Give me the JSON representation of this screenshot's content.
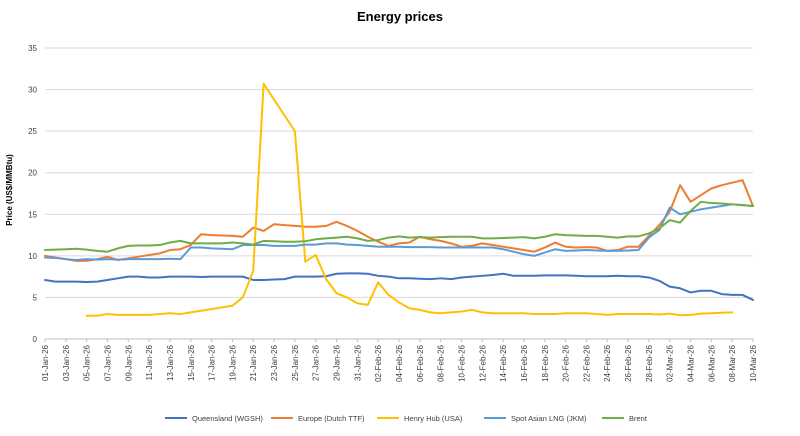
{
  "chart_data": {
    "type": "line",
    "title": "Energy prices",
    "xlabel": "",
    "ylabel": "Price  (US$/MMBtu)",
    "ylim": [
      0,
      35
    ],
    "yticks": [
      0,
      5,
      10,
      15,
      20,
      25,
      30,
      35
    ],
    "grid": "horizontal",
    "legend_position": "bottom",
    "x": [
      "01-Jan-26",
      "02-Jan-26",
      "03-Jan-26",
      "04-Jan-26",
      "05-Jan-26",
      "06-Jan-26",
      "07-Jan-26",
      "08-Jan-26",
      "09-Jan-26",
      "10-Jan-26",
      "11-Jan-26",
      "12-Jan-26",
      "13-Jan-26",
      "14-Jan-26",
      "15-Jan-26",
      "16-Jan-26",
      "17-Jan-26",
      "18-Jan-26",
      "19-Jan-26",
      "20-Jan-26",
      "21-Jan-26",
      "22-Jan-26",
      "23-Jan-26",
      "24-Jan-26",
      "25-Jan-26",
      "26-Jan-26",
      "27-Jan-26",
      "28-Jan-26",
      "29-Jan-26",
      "30-Jan-26",
      "31-Jan-26",
      "01-Feb-26",
      "02-Feb-26",
      "03-Feb-26",
      "04-Feb-26",
      "05-Feb-26",
      "06-Feb-26",
      "07-Feb-26",
      "08-Feb-26",
      "09-Feb-26",
      "10-Feb-26",
      "11-Feb-26",
      "12-Feb-26",
      "13-Feb-26",
      "14-Feb-26",
      "15-Feb-26",
      "16-Feb-26",
      "17-Feb-26",
      "18-Feb-26",
      "19-Feb-26",
      "20-Feb-26",
      "21-Feb-26",
      "22-Feb-26",
      "23-Feb-26",
      "24-Feb-26",
      "25-Feb-26",
      "26-Feb-26",
      "27-Feb-26",
      "28-Feb-26",
      "01-Mar-26",
      "02-Mar-26",
      "03-Mar-26",
      "04-Mar-26",
      "05-Mar-26",
      "06-Mar-26",
      "07-Mar-26",
      "08-Mar-26",
      "09-Mar-26",
      "10-Mar-26"
    ],
    "x_tick_labels": [
      "01-Jan-26",
      "03-Jan-26",
      "05-Jan-26",
      "07-Jan-26",
      "09-Jan-26",
      "11-Jan-26",
      "13-Jan-26",
      "15-Jan-26",
      "17-Jan-26",
      "19-Jan-26",
      "21-Jan-26",
      "23-Jan-26",
      "25-Jan-26",
      "27-Jan-26",
      "29-Jan-26",
      "31-Jan-26",
      "02-Feb-26",
      "04-Feb-26",
      "06-Feb-26",
      "08-Feb-26",
      "10-Feb-26",
      "12-Feb-26",
      "14-Feb-26",
      "16-Feb-26",
      "18-Feb-26",
      "20-Feb-26",
      "22-Feb-26",
      "24-Feb-26",
      "26-Feb-26",
      "28-Feb-26",
      "02-Mar-26",
      "04-Mar-26",
      "06-Mar-26",
      "08-Mar-26",
      "10-Mar-26"
    ],
    "series": [
      {
        "name": "Queensland (WGSH)",
        "color": "#4472C4",
        "values": [
          7.1,
          6.9,
          6.9,
          6.9,
          6.85,
          6.9,
          7.1,
          7.3,
          7.5,
          7.5,
          7.4,
          7.4,
          7.5,
          7.5,
          7.5,
          7.45,
          7.5,
          7.5,
          7.5,
          7.5,
          7.1,
          7.1,
          7.15,
          7.2,
          7.5,
          7.5,
          7.5,
          7.55,
          7.85,
          7.9,
          7.9,
          7.85,
          7.6,
          7.5,
          7.3,
          7.3,
          7.25,
          7.2,
          7.3,
          7.2,
          7.4,
          7.5,
          7.6,
          7.7,
          7.85,
          7.6,
          7.6,
          7.6,
          7.65,
          7.65,
          7.65,
          7.6,
          7.55,
          7.55,
          7.55,
          7.6,
          7.55,
          7.55,
          7.4,
          7.0,
          6.3,
          6.1,
          5.6,
          5.8,
          5.8,
          5.4,
          5.3,
          5.3,
          4.7
        ]
      },
      {
        "name": "Europe (Dutch TTF)",
        "color": "#ED7D31",
        "values": [
          10.0,
          9.8,
          9.6,
          9.4,
          9.4,
          9.6,
          9.9,
          9.5,
          9.7,
          9.9,
          10.1,
          10.3,
          10.7,
          10.8,
          11.3,
          12.6,
          12.5,
          12.45,
          12.4,
          12.3,
          13.4,
          13.0,
          13.8,
          13.7,
          13.6,
          13.5,
          13.5,
          13.6,
          14.1,
          13.6,
          13.0,
          12.3,
          11.7,
          11.2,
          11.5,
          11.6,
          12.3,
          12.0,
          11.8,
          11.5,
          11.1,
          11.2,
          11.5,
          11.3,
          11.1,
          10.9,
          10.7,
          10.5,
          11.0,
          11.6,
          11.1,
          11.0,
          11.05,
          11.0,
          10.6,
          10.7,
          11.1,
          11.1,
          12.4,
          13.7,
          15.3,
          18.5,
          16.5,
          17.3,
          18.1,
          18.5,
          18.8,
          19.1,
          16.0
        ]
      },
      {
        "name": "Henry Hub (USA)",
        "color": "#FFC000",
        "values": [
          null,
          null,
          null,
          null,
          2.8,
          2.8,
          3.0,
          2.9,
          2.9,
          2.9,
          2.9,
          3.0,
          3.1,
          3.0,
          3.2,
          3.4,
          3.6,
          3.8,
          4.0,
          5.0,
          8.2,
          30.7,
          28.8,
          26.9,
          25.0,
          9.3,
          10.1,
          7.2,
          5.5,
          5.0,
          4.3,
          4.1,
          6.8,
          5.3,
          4.4,
          3.7,
          3.5,
          3.2,
          3.1,
          3.2,
          3.3,
          3.5,
          3.2,
          3.1,
          3.1,
          3.1,
          3.1,
          3.0,
          3.0,
          3.0,
          3.1,
          3.1,
          3.1,
          3.0,
          2.9,
          3.0,
          3.0,
          3.0,
          3.0,
          2.95,
          3.05,
          2.85,
          2.9,
          3.05,
          3.1,
          3.15,
          3.2,
          null,
          null
        ]
      },
      {
        "name": "Spot Asian LNG (JKM)",
        "color": "#5B9BD5",
        "values": [
          9.8,
          9.75,
          9.6,
          9.5,
          9.6,
          9.55,
          9.6,
          9.55,
          9.6,
          9.6,
          9.6,
          9.6,
          9.65,
          9.6,
          11.0,
          11.0,
          10.9,
          10.85,
          10.8,
          11.3,
          11.3,
          11.3,
          11.2,
          11.2,
          11.2,
          11.35,
          11.35,
          11.5,
          11.5,
          11.35,
          11.3,
          11.2,
          11.1,
          11.1,
          11.1,
          11.05,
          11.05,
          11.05,
          11.0,
          11.0,
          11.0,
          11.0,
          11.0,
          11.0,
          10.8,
          10.5,
          10.2,
          10.0,
          10.4,
          10.8,
          10.6,
          10.65,
          10.7,
          10.65,
          10.6,
          10.6,
          10.65,
          10.7,
          12.2,
          13.1,
          15.8,
          15.0,
          15.3,
          15.6,
          15.8,
          16.0,
          16.2,
          16.1,
          16.0
        ]
      },
      {
        "name": "Brent",
        "color": "#70AD47",
        "values": [
          10.7,
          10.75,
          10.8,
          10.85,
          10.75,
          10.6,
          10.5,
          10.9,
          11.2,
          11.25,
          11.25,
          11.3,
          11.6,
          11.8,
          11.5,
          11.5,
          11.5,
          11.5,
          11.6,
          11.5,
          11.35,
          11.8,
          11.75,
          11.7,
          11.7,
          11.75,
          12.0,
          12.1,
          12.2,
          12.3,
          12.1,
          11.8,
          11.9,
          12.2,
          12.35,
          12.2,
          12.25,
          12.2,
          12.25,
          12.3,
          12.3,
          12.3,
          12.1,
          12.1,
          12.15,
          12.2,
          12.25,
          12.1,
          12.3,
          12.6,
          12.5,
          12.45,
          12.4,
          12.4,
          12.3,
          12.2,
          12.35,
          12.35,
          12.7,
          13.3,
          14.3,
          14.0,
          15.4,
          16.5,
          16.35,
          16.3,
          16.2,
          16.1,
          16.0
        ]
      }
    ]
  }
}
